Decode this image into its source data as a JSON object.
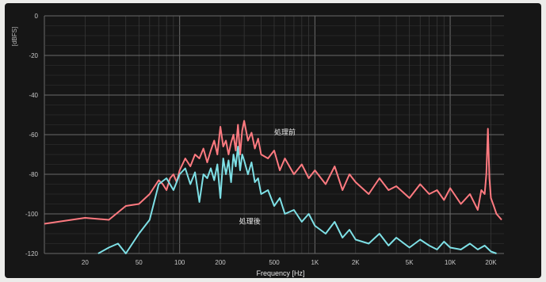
{
  "chart_data": {
    "type": "line",
    "xlabel": "Frequency [Hz]",
    "ylabel": "[dBFS]",
    "xscale": "log",
    "xlim": [
      10,
      25000
    ],
    "ylim": [
      -120,
      0
    ],
    "grid": true,
    "yticks": [
      0,
      -20,
      -40,
      -60,
      -80,
      -100,
      -120
    ],
    "yticklabels": [
      "0",
      "-20",
      "-40",
      "-60",
      "-80",
      "-100",
      "-120"
    ],
    "xticks": [
      20,
      50,
      100,
      200,
      500,
      1000,
      2000,
      5000,
      10000,
      20000
    ],
    "xticklabels": [
      "20",
      "50",
      "100",
      "200",
      "500",
      "1K",
      "2K",
      "5K",
      "10K",
      "20K"
    ],
    "annotations": [
      {
        "text": "処理前",
        "x": 600,
        "y": -60
      },
      {
        "text": "処理後",
        "x": 330,
        "y": -105
      }
    ],
    "series": [
      {
        "name": "処理前",
        "color": "#ff7a80",
        "x": [
          10,
          20,
          30,
          40,
          50,
          60,
          70,
          75,
          80,
          85,
          90,
          95,
          100,
          110,
          120,
          130,
          140,
          150,
          160,
          170,
          180,
          190,
          200,
          210,
          220,
          230,
          240,
          250,
          260,
          270,
          280,
          290,
          300,
          320,
          340,
          360,
          380,
          400,
          450,
          500,
          550,
          600,
          700,
          800,
          900,
          1000,
          1200,
          1400,
          1600,
          1800,
          2000,
          2500,
          3000,
          3500,
          4000,
          5000,
          6000,
          7000,
          8000,
          9000,
          10000,
          12000,
          14000,
          16000,
          17000,
          18000,
          18500,
          19000,
          19500,
          20000,
          21000,
          22000,
          24000
        ],
        "y": [
          -105,
          -102,
          -103,
          -96,
          -95,
          -90,
          -83,
          -85,
          -88,
          -82,
          -80,
          -84,
          -78,
          -72,
          -76,
          -70,
          -72,
          -67,
          -74,
          -68,
          -63,
          -70,
          -56,
          -66,
          -63,
          -70,
          -64,
          -60,
          -68,
          -55,
          -70,
          -58,
          -53,
          -63,
          -59,
          -67,
          -62,
          -70,
          -72,
          -68,
          -78,
          -72,
          -80,
          -75,
          -82,
          -78,
          -85,
          -76,
          -88,
          -80,
          -84,
          -90,
          -82,
          -88,
          -86,
          -92,
          -85,
          -90,
          -88,
          -93,
          -87,
          -95,
          -90,
          -98,
          -88,
          -90,
          -80,
          -57,
          -82,
          -92,
          -96,
          -100,
          -103
        ]
      },
      {
        "name": "処理後",
        "color": "#7ee0e6",
        "x": [
          25,
          30,
          35,
          40,
          50,
          60,
          70,
          80,
          90,
          95,
          100,
          110,
          120,
          130,
          140,
          150,
          160,
          170,
          180,
          190,
          200,
          210,
          220,
          230,
          240,
          250,
          260,
          270,
          280,
          290,
          300,
          320,
          340,
          360,
          380,
          400,
          450,
          500,
          550,
          600,
          700,
          800,
          900,
          1000,
          1200,
          1400,
          1600,
          1800,
          2000,
          2500,
          3000,
          3500,
          4000,
          5000,
          6000,
          7000,
          8000,
          9000,
          10000,
          12000,
          14000,
          16000,
          18000,
          20000,
          22000
        ],
        "y": [
          -120,
          -117,
          -115,
          -120,
          -110,
          -103,
          -85,
          -82,
          -88,
          -84,
          -80,
          -77,
          -85,
          -79,
          -94,
          -80,
          -82,
          -77,
          -83,
          -75,
          -92,
          -72,
          -80,
          -73,
          -84,
          -70,
          -76,
          -66,
          -78,
          -70,
          -73,
          -80,
          -74,
          -84,
          -82,
          -90,
          -88,
          -96,
          -92,
          -100,
          -98,
          -104,
          -100,
          -106,
          -110,
          -104,
          -112,
          -108,
          -113,
          -115,
          -110,
          -116,
          -112,
          -117,
          -113,
          -116,
          -118,
          -114,
          -117,
          -118,
          -115,
          -118,
          -116,
          -119,
          -120
        ]
      }
    ]
  }
}
